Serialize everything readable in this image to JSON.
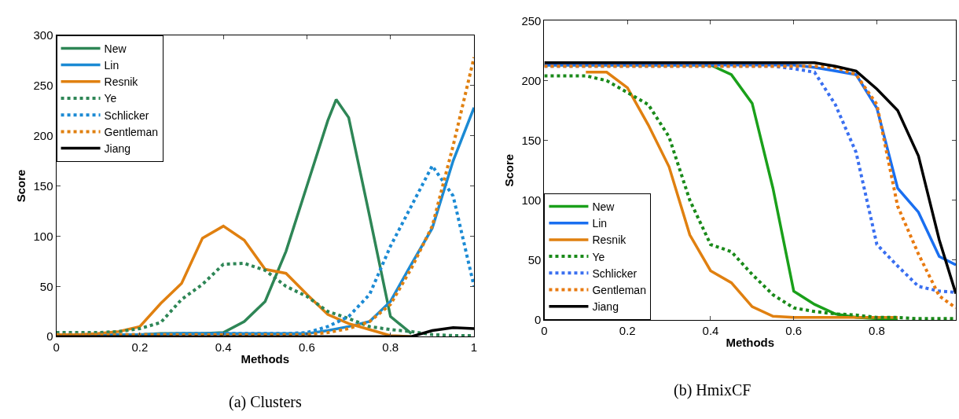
{
  "chart_data": [
    {
      "type": "line",
      "xlabel": "Methods",
      "ylabel": "Score",
      "xlim": [
        0,
        1
      ],
      "ylim": [
        0,
        300
      ],
      "xticks": [
        0,
        0.2,
        0.4,
        0.6,
        0.8,
        1
      ],
      "yticks": [
        0,
        50,
        100,
        150,
        200,
        250,
        300
      ],
      "legend": "top left",
      "marker": "none",
      "annotations": [
        "(a) Clusters"
      ],
      "series": [
        {
          "name": "New",
          "color": "#2e8656",
          "line_style": "solid",
          "x": [
            0,
            0.05,
            0.1,
            0.15,
            0.2,
            0.25,
            0.3,
            0.35,
            0.4,
            0.45,
            0.5,
            0.55,
            0.6,
            0.65,
            0.67,
            0.7,
            0.75,
            0.8,
            0.85
          ],
          "values": [
            1,
            1,
            1,
            1,
            2,
            3,
            3,
            3,
            4,
            15,
            35,
            85,
            150,
            215,
            236,
            218,
            120,
            20,
            3
          ]
        },
        {
          "name": "Lin",
          "color": "#1b8ad4",
          "line_style": "solid",
          "x": [
            0,
            0.1,
            0.2,
            0.3,
            0.4,
            0.5,
            0.6,
            0.65,
            0.7,
            0.75,
            0.8,
            0.85,
            0.9,
            0.95,
            1
          ],
          "values": [
            2,
            2,
            2,
            3,
            3,
            3,
            3,
            6,
            10,
            15,
            35,
            72,
            108,
            175,
            228
          ]
        },
        {
          "name": "Resnik",
          "color": "#e08010",
          "line_style": "solid",
          "x": [
            0,
            0.05,
            0.1,
            0.15,
            0.2,
            0.25,
            0.3,
            0.35,
            0.4,
            0.45,
            0.5,
            0.55,
            0.6,
            0.65,
            0.7,
            0.75,
            0.8,
            0.85
          ],
          "values": [
            2,
            2,
            3,
            5,
            10,
            33,
            53,
            98,
            110,
            96,
            67,
            63,
            42,
            22,
            13,
            7,
            1,
            0
          ]
        },
        {
          "name": "Ye",
          "color": "#2e8656",
          "line_style": "dotted",
          "x": [
            0,
            0.05,
            0.1,
            0.15,
            0.2,
            0.25,
            0.3,
            0.35,
            0.4,
            0.45,
            0.5,
            0.55,
            0.6,
            0.65,
            0.7,
            0.75,
            0.8,
            0.85,
            0.9,
            0.95,
            1
          ],
          "values": [
            4,
            4,
            4,
            5,
            8,
            14,
            37,
            52,
            72,
            73,
            66,
            50,
            40,
            25,
            18,
            10,
            7,
            5,
            2,
            1,
            1
          ]
        },
        {
          "name": "Schlicker",
          "color": "#1b8ad4",
          "line_style": "dotted",
          "x": [
            0,
            0.1,
            0.2,
            0.3,
            0.4,
            0.5,
            0.55,
            0.6,
            0.65,
            0.7,
            0.75,
            0.8,
            0.85,
            0.9,
            0.95,
            1
          ],
          "values": [
            2,
            2,
            2,
            3,
            3,
            3,
            3,
            4,
            10,
            20,
            42,
            90,
            130,
            170,
            140,
            50
          ]
        },
        {
          "name": "Gentleman",
          "color": "#e08010",
          "line_style": "dotted",
          "x": [
            0,
            0.1,
            0.2,
            0.3,
            0.4,
            0.5,
            0.6,
            0.65,
            0.7,
            0.75,
            0.8,
            0.85,
            0.9,
            0.95,
            1
          ],
          "values": [
            2,
            2,
            2,
            2,
            2,
            2,
            2,
            4,
            8,
            15,
            32,
            68,
            110,
            190,
            278
          ]
        },
        {
          "name": "Jiang",
          "color": "#000000",
          "line_style": "solid",
          "x": [
            0,
            0.2,
            0.4,
            0.6,
            0.8,
            0.85,
            0.9,
            0.95,
            1
          ],
          "values": [
            0,
            0,
            0,
            0,
            0,
            0,
            6,
            9,
            8
          ]
        }
      ]
    },
    {
      "type": "line",
      "xlabel": "Methods",
      "ylabel": "Score",
      "xlim": [
        0,
        0.99
      ],
      "ylim": [
        0,
        250
      ],
      "xticks": [
        0,
        0.2,
        0.4,
        0.6,
        0.8
      ],
      "yticks": [
        0,
        50,
        100,
        150,
        200,
        250
      ],
      "legend": "bottom left",
      "marker": "none",
      "annotations": [
        "(b) HmixCF"
      ],
      "series": [
        {
          "name": "New",
          "color": "#1aa01a",
          "line_style": "solid",
          "x": [
            0,
            0.2,
            0.4,
            0.45,
            0.5,
            0.55,
            0.6,
            0.65,
            0.7,
            0.75,
            0.8,
            0.85
          ],
          "values": [
            213,
            213,
            213,
            205,
            181,
            110,
            24,
            13,
            5,
            2,
            1,
            1
          ]
        },
        {
          "name": "Lin",
          "color": "#1a6ff0",
          "line_style": "solid",
          "x": [
            0,
            0.2,
            0.4,
            0.6,
            0.65,
            0.7,
            0.75,
            0.8,
            0.85,
            0.9,
            0.95,
            0.99
          ],
          "values": [
            213,
            213,
            213,
            213,
            211,
            208,
            205,
            177,
            110,
            90,
            53,
            46
          ]
        },
        {
          "name": "Resnik",
          "color": "#e08010",
          "line_style": "solid",
          "x": [
            0.1,
            0.15,
            0.2,
            0.25,
            0.3,
            0.35,
            0.4,
            0.45,
            0.5,
            0.55,
            0.6,
            0.7,
            0.85
          ],
          "values": [
            207,
            207,
            194,
            163,
            128,
            71,
            41,
            31,
            11,
            3,
            2,
            2,
            2
          ]
        },
        {
          "name": "Ye",
          "color": "#1a8a1a",
          "line_style": "dotted",
          "x": [
            0,
            0.1,
            0.15,
            0.2,
            0.25,
            0.3,
            0.35,
            0.4,
            0.45,
            0.5,
            0.55,
            0.6,
            0.65,
            0.7,
            0.75,
            0.8,
            0.85,
            0.9,
            0.99
          ],
          "values": [
            204,
            204,
            200,
            190,
            180,
            153,
            100,
            63,
            57,
            38,
            21,
            10,
            7,
            5,
            4,
            2,
            2,
            1,
            1
          ]
        },
        {
          "name": "Schlicker",
          "color": "#3a6ff0",
          "line_style": "dotted",
          "x": [
            0,
            0.2,
            0.4,
            0.55,
            0.6,
            0.65,
            0.7,
            0.75,
            0.8,
            0.85,
            0.9,
            0.95,
            0.99
          ],
          "values": [
            212,
            212,
            212,
            212,
            210,
            207,
            180,
            140,
            63,
            45,
            28,
            24,
            23
          ]
        },
        {
          "name": "Gentleman",
          "color": "#e87a10",
          "line_style": "dotted",
          "x": [
            0,
            0.2,
            0.4,
            0.65,
            0.7,
            0.75,
            0.8,
            0.85,
            0.9,
            0.95,
            0.99
          ],
          "values": [
            212,
            212,
            212,
            212,
            211,
            205,
            180,
            95,
            55,
            20,
            10
          ]
        },
        {
          "name": "Jiang",
          "color": "#000000",
          "line_style": "solid",
          "x": [
            0,
            0.2,
            0.4,
            0.6,
            0.65,
            0.7,
            0.75,
            0.8,
            0.85,
            0.9,
            0.95,
            0.99
          ],
          "values": [
            215,
            215,
            215,
            215,
            215,
            212,
            208,
            193,
            175,
            137,
            67,
            22
          ]
        }
      ]
    }
  ]
}
